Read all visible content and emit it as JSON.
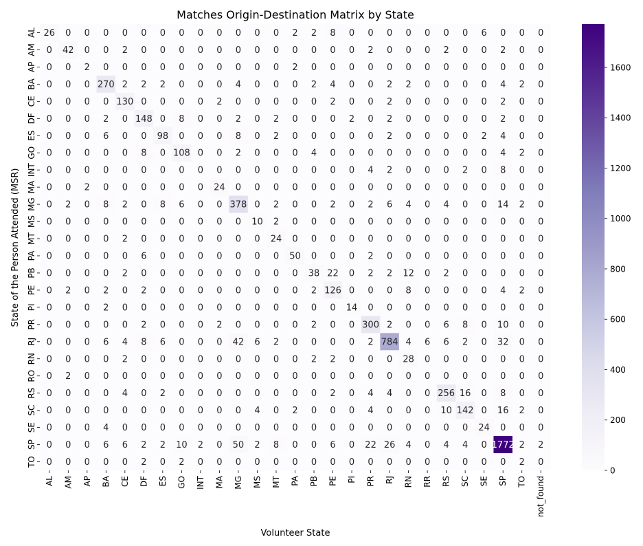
{
  "chart_data": {
    "type": "heatmap",
    "title": "Matches Origin-Destination Matrix by State",
    "xlabel": "Volunteer State",
    "ylabel": "State of the Person Attended (MSR)",
    "x_categories": [
      "AL",
      "AM",
      "AP",
      "BA",
      "CE",
      "DF",
      "ES",
      "GO",
      "INT",
      "MA",
      "MG",
      "MS",
      "MT",
      "PA",
      "PB",
      "PE",
      "PI",
      "PR",
      "RJ",
      "RN",
      "RR",
      "RS",
      "SC",
      "SE",
      "SP",
      "TO",
      "not_found"
    ],
    "y_categories": [
      "AL",
      "AM",
      "AP",
      "BA",
      "CE",
      "DF",
      "ES",
      "GO",
      "INT",
      "MA",
      "MG",
      "MS",
      "MT",
      "PA",
      "PB",
      "PE",
      "PI",
      "PR",
      "RJ",
      "RN",
      "RO",
      "RS",
      "SC",
      "SE",
      "SP",
      "TO"
    ],
    "values": [
      [
        26,
        0,
        0,
        0,
        0,
        0,
        0,
        0,
        0,
        0,
        0,
        0,
        0,
        2,
        2,
        8,
        0,
        0,
        0,
        0,
        0,
        0,
        0,
        6,
        0,
        0,
        0
      ],
      [
        0,
        42,
        0,
        0,
        2,
        0,
        0,
        0,
        0,
        0,
        0,
        0,
        0,
        0,
        0,
        0,
        0,
        2,
        0,
        0,
        0,
        2,
        0,
        0,
        2,
        0,
        0
      ],
      [
        0,
        0,
        2,
        0,
        0,
        0,
        0,
        0,
        0,
        0,
        0,
        0,
        0,
        2,
        0,
        0,
        0,
        0,
        0,
        0,
        0,
        0,
        0,
        0,
        0,
        0,
        0
      ],
      [
        0,
        0,
        0,
        270,
        2,
        2,
        2,
        0,
        0,
        0,
        4,
        0,
        0,
        0,
        2,
        4,
        0,
        0,
        2,
        2,
        0,
        0,
        0,
        0,
        4,
        2,
        0
      ],
      [
        0,
        0,
        0,
        0,
        130,
        0,
        0,
        0,
        0,
        2,
        0,
        0,
        0,
        0,
        0,
        2,
        0,
        0,
        2,
        0,
        0,
        0,
        0,
        0,
        2,
        0,
        0
      ],
      [
        0,
        0,
        0,
        2,
        0,
        148,
        0,
        8,
        0,
        0,
        2,
        0,
        2,
        0,
        0,
        0,
        2,
        0,
        2,
        0,
        0,
        0,
        0,
        0,
        2,
        0,
        0
      ],
      [
        0,
        0,
        0,
        6,
        0,
        0,
        98,
        0,
        0,
        0,
        8,
        0,
        2,
        0,
        0,
        0,
        0,
        0,
        2,
        0,
        0,
        0,
        0,
        2,
        4,
        0,
        0
      ],
      [
        0,
        0,
        0,
        0,
        0,
        8,
        0,
        108,
        0,
        0,
        2,
        0,
        0,
        0,
        4,
        0,
        0,
        0,
        0,
        0,
        0,
        0,
        0,
        0,
        4,
        2,
        0
      ],
      [
        0,
        0,
        0,
        0,
        0,
        0,
        0,
        0,
        0,
        0,
        0,
        0,
        0,
        0,
        0,
        0,
        0,
        4,
        2,
        0,
        0,
        0,
        2,
        0,
        8,
        0,
        0
      ],
      [
        0,
        0,
        2,
        0,
        0,
        0,
        0,
        0,
        0,
        24,
        0,
        0,
        0,
        0,
        0,
        0,
        0,
        0,
        0,
        0,
        0,
        0,
        0,
        0,
        0,
        0,
        0
      ],
      [
        0,
        2,
        0,
        8,
        2,
        0,
        8,
        6,
        0,
        0,
        378,
        0,
        2,
        0,
        0,
        2,
        0,
        2,
        6,
        4,
        0,
        4,
        0,
        0,
        14,
        2,
        0
      ],
      [
        0,
        0,
        0,
        0,
        0,
        0,
        0,
        0,
        0,
        0,
        0,
        10,
        2,
        0,
        0,
        0,
        0,
        0,
        0,
        0,
        0,
        0,
        0,
        0,
        0,
        0,
        0
      ],
      [
        0,
        0,
        0,
        0,
        2,
        0,
        0,
        0,
        0,
        0,
        0,
        0,
        24,
        0,
        0,
        0,
        0,
        0,
        0,
        0,
        0,
        0,
        0,
        0,
        0,
        0,
        0
      ],
      [
        0,
        0,
        0,
        0,
        0,
        6,
        0,
        0,
        0,
        0,
        0,
        0,
        0,
        50,
        0,
        0,
        0,
        2,
        0,
        0,
        0,
        0,
        0,
        0,
        0,
        0,
        0
      ],
      [
        0,
        0,
        0,
        0,
        2,
        0,
        0,
        0,
        0,
        0,
        0,
        0,
        0,
        0,
        38,
        22,
        0,
        2,
        2,
        12,
        0,
        2,
        0,
        0,
        0,
        0,
        0
      ],
      [
        0,
        2,
        0,
        2,
        0,
        2,
        0,
        0,
        0,
        0,
        0,
        0,
        0,
        0,
        2,
        126,
        0,
        0,
        0,
        8,
        0,
        0,
        0,
        0,
        4,
        2,
        0
      ],
      [
        0,
        0,
        0,
        2,
        0,
        0,
        0,
        0,
        0,
        0,
        0,
        0,
        0,
        0,
        0,
        0,
        14,
        0,
        0,
        0,
        0,
        0,
        0,
        0,
        0,
        0,
        0
      ],
      [
        0,
        0,
        0,
        0,
        0,
        2,
        0,
        0,
        0,
        2,
        0,
        0,
        0,
        0,
        2,
        0,
        0,
        300,
        2,
        0,
        0,
        6,
        8,
        0,
        10,
        0,
        0
      ],
      [
        0,
        0,
        0,
        6,
        4,
        8,
        6,
        0,
        0,
        0,
        42,
        6,
        2,
        0,
        0,
        0,
        0,
        2,
        784,
        4,
        6,
        6,
        2,
        0,
        32,
        0,
        0
      ],
      [
        0,
        0,
        0,
        0,
        2,
        0,
        0,
        0,
        0,
        0,
        0,
        0,
        0,
        0,
        2,
        2,
        0,
        0,
        0,
        28,
        0,
        0,
        0,
        0,
        0,
        0,
        0
      ],
      [
        0,
        2,
        0,
        0,
        0,
        0,
        0,
        0,
        0,
        0,
        0,
        0,
        0,
        0,
        0,
        0,
        0,
        0,
        0,
        0,
        0,
        0,
        0,
        0,
        0,
        0,
        0
      ],
      [
        0,
        0,
        0,
        0,
        4,
        0,
        2,
        0,
        0,
        0,
        0,
        0,
        0,
        0,
        0,
        2,
        0,
        4,
        4,
        0,
        0,
        256,
        16,
        0,
        8,
        0,
        0
      ],
      [
        0,
        0,
        0,
        0,
        0,
        0,
        0,
        0,
        0,
        0,
        0,
        4,
        0,
        2,
        0,
        0,
        0,
        4,
        0,
        0,
        0,
        10,
        142,
        0,
        16,
        2,
        0
      ],
      [
        0,
        0,
        0,
        4,
        0,
        0,
        0,
        0,
        0,
        0,
        0,
        0,
        0,
        0,
        0,
        0,
        0,
        0,
        0,
        0,
        0,
        0,
        0,
        24,
        0,
        0,
        0
      ],
      [
        0,
        0,
        0,
        6,
        6,
        2,
        2,
        10,
        2,
        0,
        50,
        2,
        8,
        0,
        0,
        6,
        0,
        22,
        26,
        4,
        0,
        4,
        4,
        0,
        1772,
        2,
        2
      ],
      [
        0,
        0,
        0,
        0,
        0,
        2,
        0,
        2,
        0,
        0,
        0,
        0,
        0,
        0,
        0,
        0,
        0,
        0,
        0,
        0,
        0,
        0,
        0,
        0,
        0,
        2,
        0
      ]
    ],
    "colorbar": {
      "min": 0,
      "max": 1772,
      "ticks": [
        0,
        200,
        400,
        600,
        800,
        1000,
        1200,
        1400,
        1600
      ],
      "colormap": "Purples",
      "low_color": "#fcfbfd",
      "high_color": "#3f007d"
    },
    "grid": false
  }
}
